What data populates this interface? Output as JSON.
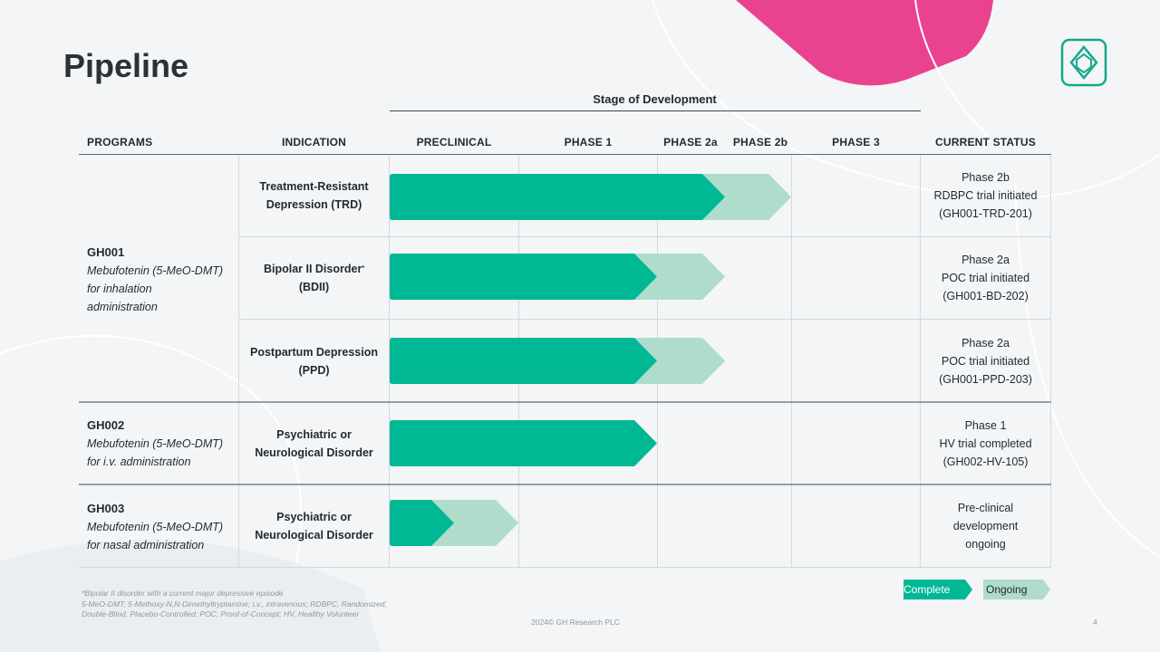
{
  "title": "Pipeline",
  "stage_of_development": "Stage of Development",
  "headers": {
    "programs": "PROGRAMS",
    "indication": "INDICATION",
    "preclinical": "PRECLINICAL",
    "phase1": "PHASE 1",
    "phase2a": "PHASE 2a",
    "phase2b": "PHASE 2b",
    "phase3": "PHASE 3",
    "status": "CURRENT STATUS"
  },
  "programs": [
    {
      "code": "GH001",
      "desc1": "Mebufotenin (5-MeO-DMT)",
      "desc2": "for inhalation",
      "desc3": "administration"
    },
    {
      "code": "GH002",
      "desc1": "Mebufotenin (5-MeO-DMT)",
      "desc2": "for i.v. administration"
    },
    {
      "code": "GH003",
      "desc1": "Mebufotenin (5-MeO-DMT)",
      "desc2": "for nasal administration"
    }
  ],
  "rows": [
    {
      "ind1": "Treatment-Resistant",
      "ind2": "Depression (TRD)",
      "ind_sup": "",
      "status1": "Phase 2b",
      "status2": "RDBPC trial initiated",
      "status3": "(GH001-TRD-201)",
      "complete_stage": 2.5,
      "ongoing_stage": 3.0
    },
    {
      "ind1": "Bipolar II Disorder",
      "ind2": "(BDII)",
      "ind_sup": "*",
      "status1": "Phase 2a",
      "status2": "POC trial initiated",
      "status3": "(GH001-BD-202)",
      "complete_stage": 2.0,
      "ongoing_stage": 2.5
    },
    {
      "ind1": "Postpartum Depression",
      "ind2": "(PPD)",
      "ind_sup": "",
      "status1": "Phase 2a",
      "status2": "POC trial initiated",
      "status3": "(GH001-PPD-203)",
      "complete_stage": 2.0,
      "ongoing_stage": 2.5
    },
    {
      "ind1": "Psychiatric or",
      "ind2": "Neurological Disorder",
      "ind_sup": "",
      "status1": "Phase 1",
      "status2": "HV trial completed",
      "status3": "(GH002-HV-105)",
      "complete_stage": 2.0,
      "ongoing_stage": 0
    },
    {
      "ind1": "Psychiatric or",
      "ind2": "Neurological Disorder",
      "ind_sup": "",
      "status1": "Pre-clinical",
      "status2": "development",
      "status3": "ongoing",
      "complete_stage": 0.5,
      "ongoing_stage": 1.0
    }
  ],
  "legend": {
    "complete": "Complete",
    "ongoing": "Ongoing"
  },
  "colors": {
    "complete": "#00b894",
    "ongoing": "#afdccb",
    "accent": "#e9428f"
  },
  "footnote": {
    "line1": "*Bipolar II disorder with a current major depressive episode",
    "line2": "5-MeO-DMT, 5-Methoxy-N,N-Dimethyltryptamine; i.v., intravenous; RDBPC, Randomized,",
    "line3": "Double-Blind, Placebo-Controlled; POC, Proof-of-Concept; HV, Healthy Volunteer"
  },
  "copyright": "2024© GH Research PLC",
  "page_number": "4"
}
